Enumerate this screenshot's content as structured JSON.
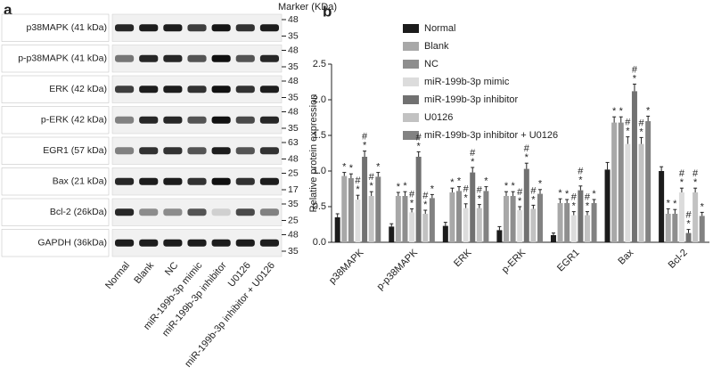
{
  "panel_a": {
    "label": "a",
    "marker_title": "Marker (KDa)",
    "rows": [
      {
        "label": "p38MAPK (41 kDa)",
        "markers": [
          "48",
          "35"
        ]
      },
      {
        "label": "p-p38MAPK (41 kDa)",
        "markers": [
          "48",
          "35"
        ]
      },
      {
        "label": "ERK (42 kDa)",
        "markers": [
          "48",
          "35"
        ]
      },
      {
        "label": "p-ERK (42 kDa)",
        "markers": [
          "48",
          "35"
        ]
      },
      {
        "label": "EGR1 (57 kDa)",
        "markers": [
          "63",
          "48"
        ]
      },
      {
        "label": "Bax (21 kDa)",
        "markers": [
          "25",
          "17"
        ]
      },
      {
        "label": "Bcl-2 (26kDa)",
        "markers": [
          "35",
          "25"
        ]
      },
      {
        "label": "GAPDH (36kDa)",
        "markers": [
          "48",
          "35"
        ]
      }
    ],
    "lanes": [
      "Normal",
      "Blank",
      "NC",
      "miR-199b-3p mimic",
      "miR-199b-3p inhibitor",
      "U0126",
      "miR-199b-3p inhibitor + U0126"
    ]
  },
  "chart_data": {
    "type": "bar",
    "panel_label": "b",
    "y_label": "Relative protein expression",
    "categories": [
      "p38MAPK",
      "p-p38MAPK",
      "ERK",
      "p-ERK",
      "EGR1",
      "Bax",
      "Bcl-2"
    ],
    "ylim": [
      0,
      2.5
    ],
    "yticks": [
      {
        "value": 0,
        "label": "0.0"
      },
      0.5,
      {
        "value": 1,
        "label": "1.0"
      },
      1.5,
      {
        "value": 2,
        "label": "2.0"
      },
      2.5
    ],
    "series": [
      {
        "name": "Normal",
        "color": "#1c1c1c",
        "values": [
          0.35,
          0.22,
          0.23,
          0.17,
          0.1,
          1.02,
          1.0
        ],
        "errors": [
          0.05,
          0.04,
          0.05,
          0.05,
          0.03,
          0.1,
          0.06
        ]
      },
      {
        "name": "Blank",
        "color": "#a8a8a8",
        "values": [
          0.93,
          0.65,
          0.7,
          0.65,
          0.55,
          1.68,
          0.4
        ],
        "errors": [
          0.05,
          0.05,
          0.06,
          0.06,
          0.06,
          0.08,
          0.07
        ],
        "markers": [
          [
            "*"
          ],
          [
            "*"
          ],
          [
            "*"
          ],
          [
            "*"
          ],
          [
            "*"
          ],
          [
            "*"
          ],
          [
            "*"
          ]
        ]
      },
      {
        "name": "NC",
        "color": "#8e8e8e",
        "values": [
          0.9,
          0.65,
          0.72,
          0.65,
          0.55,
          1.68,
          0.4
        ],
        "errors": [
          0.06,
          0.06,
          0.06,
          0.06,
          0.05,
          0.08,
          0.06
        ],
        "markers": [
          [
            "*"
          ],
          [
            "*"
          ],
          [
            "*"
          ],
          [
            "*"
          ],
          [
            "*"
          ],
          [
            "*"
          ],
          [
            "*"
          ]
        ]
      },
      {
        "name": "miR-199b-3p mimic",
        "color": "#dcdcdc",
        "values": [
          0.6,
          0.42,
          0.48,
          0.45,
          0.38,
          1.38,
          0.7
        ],
        "errors": [
          0.06,
          0.05,
          0.06,
          0.05,
          0.05,
          0.1,
          0.06
        ],
        "markers": [
          [
            "#",
            "*"
          ],
          [
            "#",
            "*"
          ],
          [
            "#",
            "*"
          ],
          [
            "#",
            "*"
          ],
          [
            "#",
            "*"
          ],
          [
            "#",
            "*"
          ],
          [
            "#",
            "*"
          ]
        ]
      },
      {
        "name": "miR-199b-3p inhibitor",
        "color": "#717171",
        "values": [
          1.2,
          1.2,
          0.98,
          1.03,
          0.73,
          2.12,
          0.13
        ],
        "errors": [
          0.08,
          0.07,
          0.07,
          0.08,
          0.06,
          0.1,
          0.05
        ],
        "markers": [
          [
            "#",
            "*"
          ],
          [
            "#",
            "*"
          ],
          [
            "#",
            "*"
          ],
          [
            "#",
            "*"
          ],
          [
            "#",
            "*"
          ],
          [
            "#",
            "*"
          ],
          [
            "#",
            "*"
          ]
        ]
      },
      {
        "name": "U0126",
        "color": "#c2c2c2",
        "values": [
          0.65,
          0.4,
          0.48,
          0.47,
          0.38,
          1.38,
          0.7
        ],
        "errors": [
          0.06,
          0.05,
          0.05,
          0.05,
          0.05,
          0.09,
          0.06
        ],
        "markers": [
          [
            "#",
            "*"
          ],
          [
            "#",
            "*"
          ],
          [
            "#",
            "*"
          ],
          [
            "#",
            "*"
          ],
          [
            "#",
            "*"
          ],
          [
            "#",
            "*"
          ],
          [
            "#",
            "*"
          ]
        ]
      },
      {
        "name": "miR-199b-3p inhibitor + U0126",
        "color": "#828282",
        "values": [
          0.92,
          0.62,
          0.72,
          0.68,
          0.55,
          1.7,
          0.37
        ],
        "errors": [
          0.06,
          0.05,
          0.06,
          0.06,
          0.05,
          0.07,
          0.05
        ],
        "markers": [
          [
            "*"
          ],
          [
            "*"
          ],
          [
            "*"
          ],
          [
            "*"
          ],
          [
            "*"
          ],
          [
            "*"
          ],
          [
            "*"
          ]
        ]
      }
    ]
  }
}
